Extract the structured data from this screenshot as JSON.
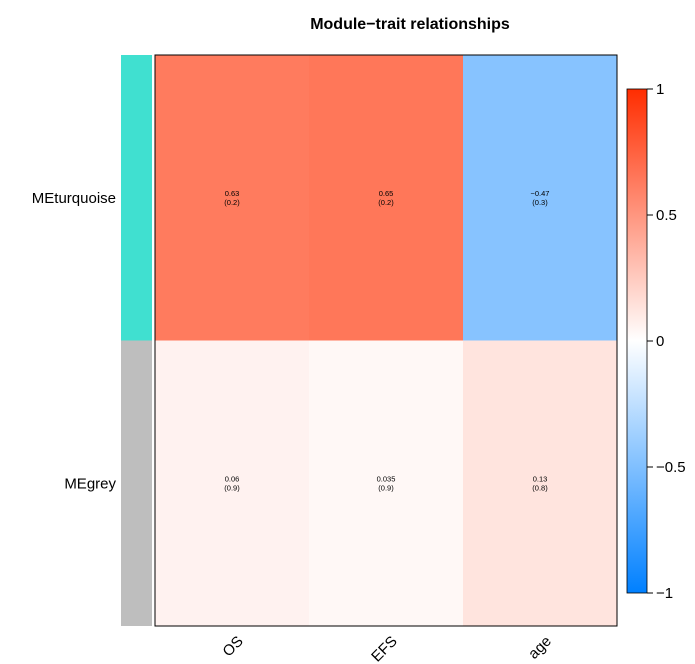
{
  "chart_data": {
    "type": "heatmap",
    "title": "Module−trait relationships",
    "rows": [
      {
        "label": "MEturquoise",
        "color": "#40E0D0"
      },
      {
        "label": "MEgrey",
        "color": "#BEBEBE"
      }
    ],
    "columns": [
      "OS",
      "EFS",
      "age"
    ],
    "values": [
      [
        0.63,
        0.65,
        -0.47
      ],
      [
        0.06,
        0.035,
        0.13
      ]
    ],
    "cell_labels": [
      [
        [
          "0.63",
          "(0.2)"
        ],
        [
          "0.65",
          "(0.2)"
        ],
        [
          "−0.47",
          "(0.3)"
        ]
      ],
      [
        [
          "0.06",
          "(0.9)"
        ],
        [
          "0.035",
          "(0.9)"
        ],
        [
          "0.13",
          "(0.8)"
        ]
      ]
    ],
    "colorbar": {
      "range": [
        -1,
        1
      ],
      "ticks": [
        1,
        0.5,
        0,
        -0.5,
        -1
      ],
      "tick_labels": [
        "1",
        "0.5",
        "0",
        "−0.5",
        "−1"
      ],
      "colors": {
        "low": "#0080FF",
        "mid": "#FFFFFF",
        "high": "#FF2D00"
      }
    }
  }
}
